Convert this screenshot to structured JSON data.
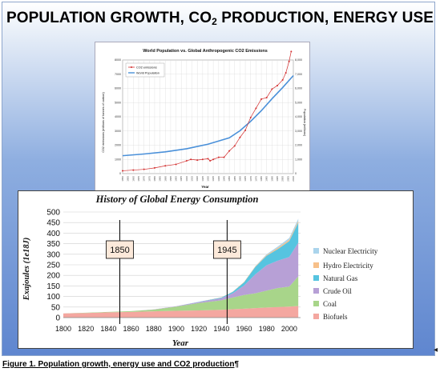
{
  "slide": {
    "title_prefix": "POPULATION GROWTH, CO",
    "title_sub": "2",
    "title_suffix": " PRODUCTION, ENERGY USE"
  },
  "caption": "Figure 1. Population growth, energy use and CO2 production",
  "caption_pilcrow": "¶",
  "chart_data": [
    {
      "type": "line",
      "title": "World Population vs. Global Anthropogenic CO2 Emissions",
      "xlabel": "Year",
      "ylabel": "CO2 emissions (millions of tonnes of carbon)",
      "y2label": "Population (millions)",
      "ylim": [
        0,
        8000
      ],
      "y2lim": [
        0,
        8000
      ],
      "yticks": [
        0,
        1000,
        2000,
        3000,
        4000,
        5000,
        6000,
        7000,
        8000
      ],
      "y2ticks": [
        "0",
        "1,000",
        "2,000",
        "3,000",
        "4,000",
        "5,000",
        "6,000",
        "7,000",
        "8,000"
      ],
      "xlim": [
        1850,
        2010
      ],
      "grid": true,
      "legend_position": "top-left",
      "series": [
        {
          "name": "CO2 emissions",
          "color": "#d32f2f",
          "x": [
            1850,
            1860,
            1870,
            1880,
            1890,
            1900,
            1910,
            1914,
            1920,
            1925,
            1930,
            1932,
            1935,
            1940,
            1945,
            1950,
            1955,
            1960,
            1965,
            1970,
            1975,
            1980,
            1985,
            1990,
            1995,
            2000,
            2003,
            2006,
            2008
          ],
          "values": [
            200,
            250,
            300,
            400,
            550,
            650,
            900,
            1000,
            950,
            1000,
            1050,
            900,
            1000,
            1150,
            1150,
            1600,
            1950,
            2550,
            3050,
            3950,
            4600,
            5250,
            5350,
            5950,
            6200,
            6600,
            7100,
            7900,
            8600
          ]
        },
        {
          "name": "World Population",
          "color": "#4a90d9",
          "x": [
            1850,
            1870,
            1890,
            1910,
            1930,
            1950,
            1960,
            1970,
            1980,
            1990,
            2000,
            2010
          ],
          "values": [
            1260,
            1380,
            1530,
            1750,
            2070,
            2520,
            3020,
            3680,
            4430,
            5270,
            6060,
            6900
          ]
        }
      ]
    },
    {
      "type": "area",
      "title": "History of Global Energy Consumption",
      "xlabel": "Year",
      "ylabel": "Exajoules (1e18J)",
      "ylim": [
        0,
        500
      ],
      "yticks": [
        0,
        50,
        100,
        150,
        200,
        250,
        300,
        350,
        400,
        450,
        500
      ],
      "xticks": [
        1800,
        1820,
        1840,
        1860,
        1880,
        1900,
        1920,
        1940,
        1960,
        1980,
        2000
      ],
      "xlim": [
        1800,
        2010
      ],
      "grid": true,
      "legend_position": "right",
      "annotations": [
        {
          "label": "1850",
          "x": 1850
        },
        {
          "label": "1945",
          "x": 1945
        }
      ],
      "x": [
        1800,
        1820,
        1840,
        1860,
        1880,
        1900,
        1920,
        1940,
        1950,
        1960,
        1970,
        1980,
        1990,
        2000,
        2008
      ],
      "series": [
        {
          "name": "Biofuels",
          "color": "#f4a7a0",
          "values": [
            20,
            22,
            25,
            27,
            30,
            32,
            34,
            37,
            40,
            42,
            45,
            48,
            50,
            52,
            55
          ]
        },
        {
          "name": "Coal",
          "color": "#a8d58a",
          "values": [
            0,
            1,
            2,
            4,
            8,
            20,
            35,
            45,
            55,
            65,
            70,
            80,
            90,
            95,
            140
          ]
        },
        {
          "name": "Crude Oil",
          "color": "#b7a0d6",
          "values": [
            0,
            0,
            0,
            0,
            1,
            2,
            5,
            10,
            20,
            45,
            90,
            120,
            130,
            140,
            160
          ]
        },
        {
          "name": "Natural Gas",
          "color": "#56c4e0",
          "values": [
            0,
            0,
            0,
            0,
            0,
            0,
            1,
            3,
            7,
            15,
            35,
            45,
            55,
            75,
            95
          ]
        },
        {
          "name": "Hydro Electricity",
          "color": "#f7c08a",
          "values": [
            0,
            0,
            0,
            0,
            0,
            0,
            0,
            1,
            1,
            2,
            3,
            4,
            6,
            7,
            8
          ]
        },
        {
          "name": "Nuclear Electricity",
          "color": "#aad4ec",
          "values": [
            0,
            0,
            0,
            0,
            0,
            0,
            0,
            0,
            0,
            0,
            1,
            3,
            6,
            8,
            10
          ]
        }
      ]
    }
  ]
}
